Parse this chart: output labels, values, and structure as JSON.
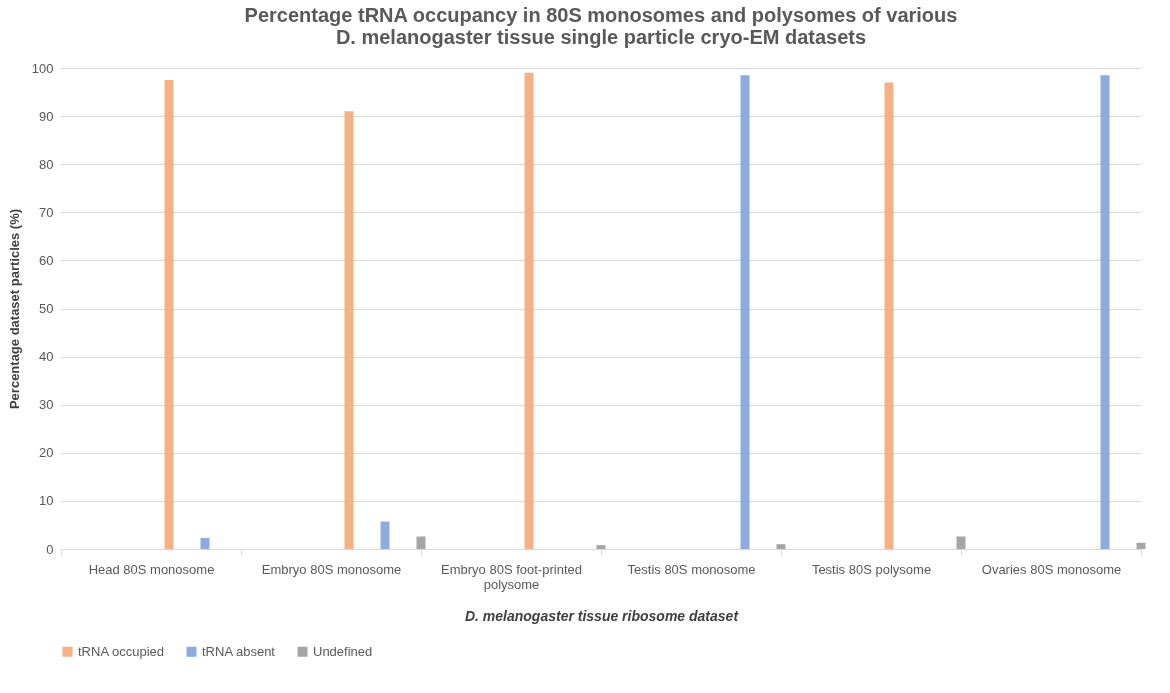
{
  "chart_data": {
    "type": "bar",
    "title": [
      "Percentage tRNA occupancy in 80S monosomes and polysomes of various",
      "D. melanogaster tissue single particle cryo-EM datasets"
    ],
    "xlabel": "D. melanogaster tissue ribosome dataset",
    "ylabel": "Percentage dataset particles (%)",
    "categories": [
      "Head 80S monosome",
      "Embryo 80S monosome",
      "Embryo 80S foot-printed polysome",
      "Testis 80S monosome",
      "Testis 80S polysome",
      "Ovaries 80S monosome"
    ],
    "series": [
      {
        "name": "tRNA occupied",
        "color": "#f4b183",
        "values": [
          97.5,
          91,
          99,
          0,
          97,
          0
        ]
      },
      {
        "name": "tRNA absent",
        "color": "#8faadc",
        "values": [
          2.3,
          5.7,
          0,
          98.5,
          0,
          98.5
        ]
      },
      {
        "name": "Undefined",
        "color": "#a5a5a5",
        "values": [
          0,
          2.6,
          0.8,
          1.0,
          2.6,
          1.3
        ]
      }
    ],
    "ylim": [
      0,
      100
    ],
    "yticks": [
      0,
      10,
      20,
      30,
      40,
      50,
      60,
      70,
      80,
      90,
      100
    ],
    "grid": "y",
    "legend": "bottom"
  }
}
